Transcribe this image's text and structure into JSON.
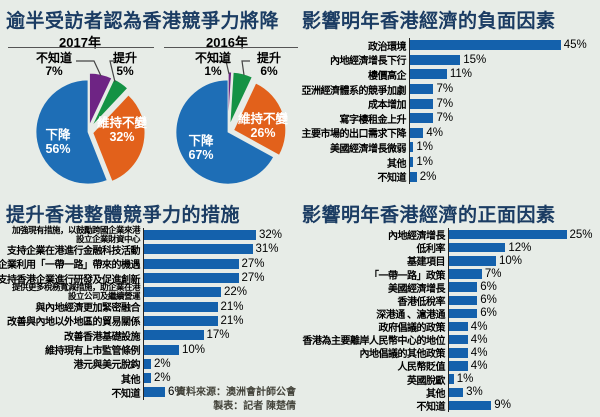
{
  "page": {
    "background": "#e7ece7",
    "title_color": "#1b3c63",
    "bar_color": "#1461ac"
  },
  "chart_data": [
    {
      "id": "competitiveness-2017",
      "type": "pie",
      "title": "逾半受訪者認為香港競爭力將降",
      "subtitle": "2017年",
      "order": "clockwise-from-top",
      "slices": [
        {
          "label": "不知道",
          "value": 7,
          "color": "#6e2484"
        },
        {
          "label": "提升",
          "value": 5,
          "color": "#149244"
        },
        {
          "label": "維持不變",
          "value": 32,
          "color": "#e2611b"
        },
        {
          "label": "下降",
          "value": 56,
          "color": "#1e6eb6"
        }
      ]
    },
    {
      "id": "competitiveness-2016",
      "type": "pie",
      "title": "逾半受訪者認為香港競爭力將降",
      "subtitle": "2016年",
      "order": "clockwise-from-top",
      "slices": [
        {
          "label": "不知道",
          "value": 1,
          "color": "#6e2484"
        },
        {
          "label": "提升",
          "value": 6,
          "color": "#149244"
        },
        {
          "label": "維持不變",
          "value": 26,
          "color": "#e2611b"
        },
        {
          "label": "下降",
          "value": 67,
          "color": "#1e6eb6"
        }
      ]
    },
    {
      "id": "negative-factors",
      "type": "bar",
      "orientation": "horizontal",
      "unit": "%",
      "title": "影響明年香港經濟的負面因素",
      "categories": [
        "政治環境",
        "內地經濟增長下行",
        "樓價高企",
        "亞洲經濟體系的競爭加劇",
        "成本增加",
        "寫字樓租金上升",
        "主要市場的出口需求下降",
        "美國經濟增長微弱",
        "其他",
        "不知道"
      ],
      "values": [
        45,
        15,
        11,
        7,
        7,
        7,
        4,
        1,
        1,
        2
      ]
    },
    {
      "id": "competitiveness-measures",
      "type": "bar",
      "orientation": "horizontal",
      "unit": "%",
      "title": "提升香港整體競爭力的措施",
      "categories": [
        "加強現有措施，以鼓勵跨國企業來港\n設立企業財資中心",
        "支持企業在港進行金融科技活動",
        "支持企業利用「一帶一路」帶來的機遇",
        "支持香港企業進行研發及促進創新",
        "提供更多稅務寬減措施，助企業在港\n設立公司及繼續營運",
        "與內地經濟更加緊密融合",
        "改善與內地以外地區的貿易關係",
        "改善香港基礎設施",
        "維持現有上市監管條例",
        "港元與美元脫鈎",
        "其他",
        "不知道"
      ],
      "values": [
        32,
        31,
        27,
        27,
        22,
        21,
        21,
        17,
        10,
        2,
        2,
        6
      ]
    },
    {
      "id": "positive-factors",
      "type": "bar",
      "orientation": "horizontal",
      "unit": "%",
      "title": "影響明年香港經濟的正面因素",
      "categories": [
        "內地經濟增長",
        "低利率",
        "基建項目",
        "「一帶一路」政策",
        "美國經濟增長",
        "香港低稅率",
        "深港通 、滬港通",
        "政府倡議的政策",
        "香港為主要離岸人民幣中心的地位",
        "內地倡議的其他政策",
        "人民幣貶值",
        "英國脫歐",
        "其他",
        "不知道"
      ],
      "values": [
        25,
        12,
        10,
        7,
        6,
        6,
        6,
        4,
        4,
        4,
        4,
        1,
        3,
        9
      ]
    }
  ],
  "source": {
    "line1": "資料來源：澳洲會計師公會",
    "line2": "製表：記者 陳楚倩"
  }
}
